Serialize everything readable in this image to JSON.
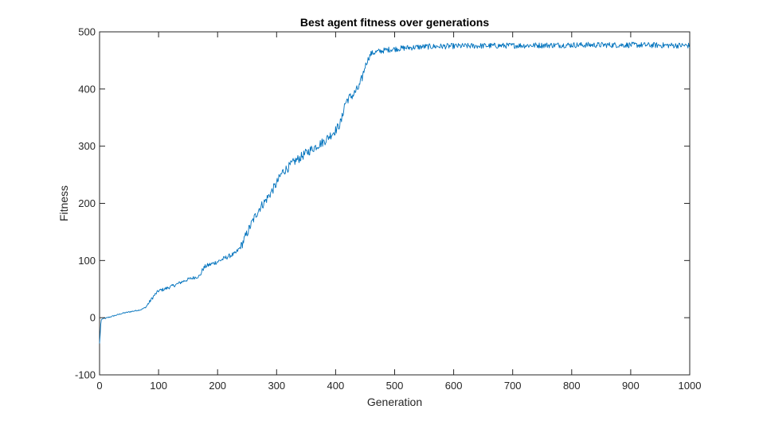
{
  "chart_data": {
    "type": "line",
    "title": "Best agent fitness over generations",
    "xlabel": "Generation",
    "ylabel": "Fitness",
    "xlim": [
      0,
      1000
    ],
    "ylim": [
      -100,
      500
    ],
    "xticks": [
      0,
      100,
      200,
      300,
      400,
      500,
      600,
      700,
      800,
      900,
      1000
    ],
    "yticks": [
      -100,
      0,
      100,
      200,
      300,
      400,
      500
    ],
    "grid": false,
    "series": [
      {
        "color": "#0072BD",
        "anchors": [
          [
            0,
            -45
          ],
          [
            1,
            -30
          ],
          [
            2,
            -12
          ],
          [
            3,
            -4
          ],
          [
            5,
            -2
          ],
          [
            10,
            -1
          ],
          [
            20,
            2
          ],
          [
            30,
            5
          ],
          [
            40,
            8
          ],
          [
            50,
            10
          ],
          [
            60,
            12
          ],
          [
            70,
            14
          ],
          [
            78,
            18
          ],
          [
            85,
            28
          ],
          [
            92,
            38
          ],
          [
            100,
            47
          ],
          [
            110,
            50
          ],
          [
            120,
            54
          ],
          [
            130,
            58
          ],
          [
            140,
            63
          ],
          [
            150,
            67
          ],
          [
            160,
            70
          ],
          [
            170,
            73
          ],
          [
            175,
            85
          ],
          [
            180,
            90
          ],
          [
            190,
            94
          ],
          [
            200,
            98
          ],
          [
            210,
            103
          ],
          [
            220,
            108
          ],
          [
            230,
            112
          ],
          [
            240,
            125
          ],
          [
            250,
            148
          ],
          [
            260,
            170
          ],
          [
            270,
            190
          ],
          [
            280,
            203
          ],
          [
            290,
            218
          ],
          [
            300,
            235
          ],
          [
            310,
            255
          ],
          [
            320,
            263
          ],
          [
            330,
            273
          ],
          [
            340,
            280
          ],
          [
            350,
            288
          ],
          [
            360,
            295
          ],
          [
            370,
            302
          ],
          [
            380,
            308
          ],
          [
            390,
            318
          ],
          [
            400,
            328
          ],
          [
            405,
            335
          ],
          [
            410,
            345
          ],
          [
            415,
            372
          ],
          [
            420,
            382
          ],
          [
            430,
            390
          ],
          [
            440,
            404
          ],
          [
            445,
            420
          ],
          [
            450,
            440
          ],
          [
            455,
            452
          ],
          [
            460,
            462
          ],
          [
            470,
            465
          ],
          [
            480,
            467
          ],
          [
            490,
            469
          ],
          [
            500,
            470
          ],
          [
            520,
            472
          ],
          [
            550,
            474
          ],
          [
            600,
            475
          ],
          [
            700,
            476
          ],
          [
            800,
            477
          ],
          [
            900,
            477
          ],
          [
            1000,
            476
          ]
        ]
      }
    ]
  }
}
